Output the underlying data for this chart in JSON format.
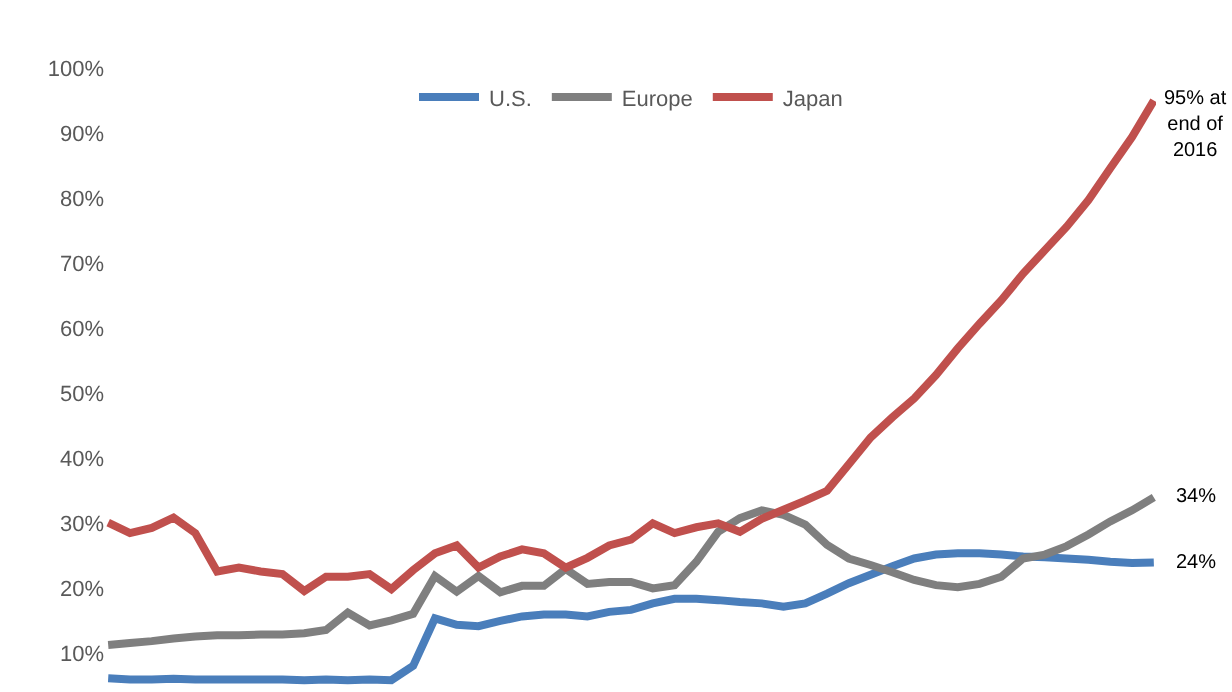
{
  "chart_data": {
    "type": "line",
    "categories": [
      null,
      null,
      null,
      null,
      null,
      null,
      null,
      null,
      null,
      null,
      null,
      null,
      null,
      null,
      null,
      null,
      null,
      null,
      null,
      null,
      null,
      null,
      null,
      null,
      null,
      null,
      null,
      null,
      null,
      null,
      null,
      null,
      null,
      null,
      null,
      null,
      null,
      null,
      null,
      null,
      null,
      null,
      null,
      null,
      null,
      null,
      null,
      null,
      null
    ],
    "series": [
      {
        "name": "U.S.",
        "color": "#4a7ebb",
        "values": [
          6.2,
          6.0,
          6.0,
          6.1,
          6.0,
          6.0,
          6.0,
          6.0,
          6.0,
          5.9,
          6.0,
          5.9,
          6.0,
          5.9,
          8.1,
          15.4,
          14.4,
          14.2,
          15.0,
          15.7,
          16.0,
          16.0,
          15.7,
          16.4,
          16.7,
          17.7,
          18.4,
          18.4,
          18.2,
          17.9,
          17.7,
          17.2,
          17.7,
          19.2,
          20.8,
          22.1,
          23.4,
          24.6,
          25.2,
          25.4,
          25.4,
          25.2,
          24.9,
          24.8,
          24.6,
          24.4,
          24.1,
          23.9,
          24
        ]
      },
      {
        "name": "Europe",
        "color": "#7f7f7f",
        "values": [
          11.3,
          11.6,
          11.9,
          12.3,
          12.6,
          12.8,
          12.8,
          12.9,
          12.9,
          13.1,
          13.6,
          16.3,
          14.3,
          15.1,
          16.1,
          21.9,
          19.5,
          21.9,
          19.4,
          20.4,
          20.4,
          23.0,
          20.7,
          21.0,
          21.0,
          20.0,
          20.5,
          24.1,
          28.7,
          30.8,
          32.0,
          31.3,
          29.8,
          26.7,
          24.6,
          23.6,
          22.5,
          21.3,
          20.5,
          20.2,
          20.7,
          21.8,
          24.6,
          25.2,
          26.5,
          28.3,
          30.3,
          32.0,
          34
        ]
      },
      {
        "name": "Japan",
        "color": "#c0504d",
        "values": [
          30.1,
          28.5,
          29.3,
          30.9,
          28.5,
          22.6,
          23.2,
          22.6,
          22.2,
          19.6,
          21.8,
          21.8,
          22.2,
          19.9,
          22.8,
          25.4,
          26.6,
          23.2,
          24.9,
          26.0,
          25.4,
          23.2,
          24.7,
          26.6,
          27.5,
          30.0,
          28.5,
          29.4,
          30.0,
          28.7,
          30.7,
          32.1,
          33.5,
          35.0,
          39.1,
          43.2,
          46.3,
          49.2,
          52.8,
          56.9,
          60.7,
          64.3,
          68.4,
          72.0,
          75.6,
          79.7,
          84.6,
          89.4,
          95
        ]
      }
    ],
    "annotations": [
      "95% at\nend of\n2016",
      "34%",
      "24%"
    ],
    "ylim": [
      5,
      100
    ],
    "yticks": [
      {
        "value": 10,
        "label": "10%"
      },
      {
        "value": 20,
        "label": "20%"
      },
      {
        "value": 30,
        "label": "30%"
      },
      {
        "value": 40,
        "label": "40%"
      },
      {
        "value": 50,
        "label": "50%"
      },
      {
        "value": 60,
        "label": "60%"
      },
      {
        "value": 70,
        "label": "70%"
      },
      {
        "value": 80,
        "label": "80%"
      },
      {
        "value": 90,
        "label": "90%"
      },
      {
        "value": 100,
        "label": "100%"
      }
    ],
    "tick_labels": "y",
    "legend": "top",
    "marker": "none",
    "line_style": "solid"
  }
}
